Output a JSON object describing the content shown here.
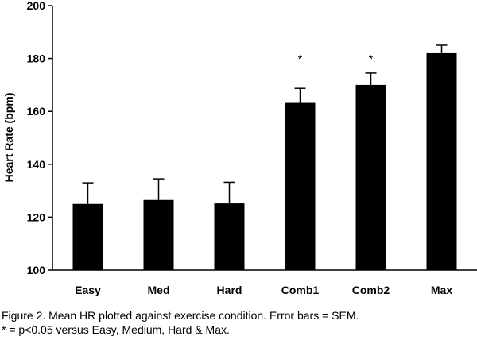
{
  "chart_data": {
    "type": "bar",
    "categories": [
      "Easy",
      "Med",
      "Hard",
      "Comb1",
      "Comb2",
      "Max"
    ],
    "values": [
      125,
      126.5,
      125.2,
      163.2,
      170,
      182
    ],
    "error_plus": [
      8,
      8,
      8,
      5.5,
      4.5,
      3
    ],
    "significance": [
      "",
      "",
      "",
      "*",
      "*",
      ""
    ],
    "title": "",
    "xlabel": "",
    "ylabel": "Heart Rate (bpm)",
    "ylim": [
      100,
      200
    ],
    "yticks": [
      100,
      120,
      140,
      160,
      180,
      200
    ],
    "grid": false,
    "bar_color": "#000000"
  },
  "caption": {
    "line1": "Figure 2. Mean HR plotted against exercise condition. Error bars = SEM.",
    "line2": "* = p<0.05 versus Easy, Medium, Hard & Max."
  }
}
